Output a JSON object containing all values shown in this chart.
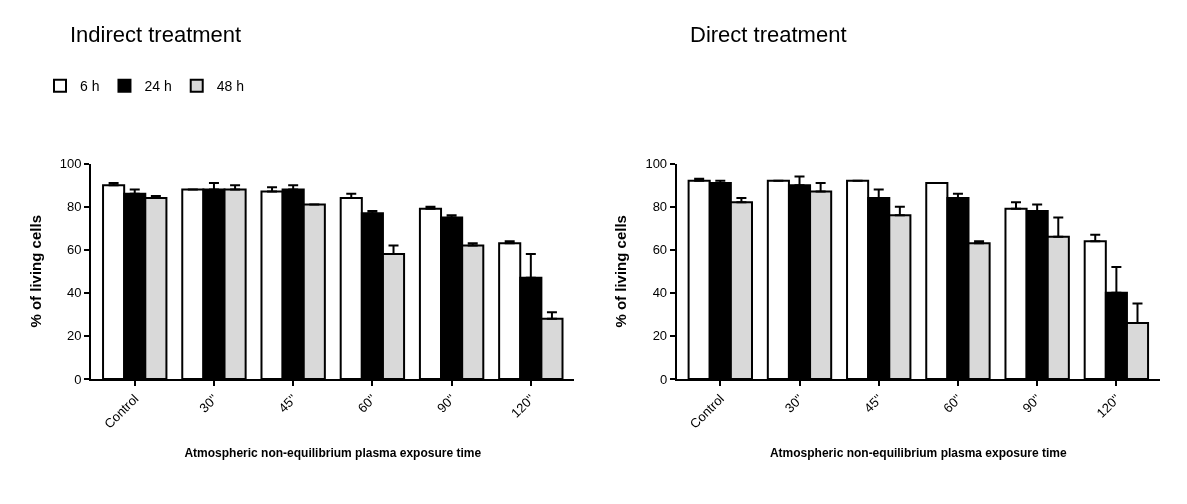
{
  "chart_data": [
    {
      "type": "bar",
      "title": "Indirect treatment",
      "ylabel": "% of living cells",
      "xlabel": "Atmospheric non-equilibrium plasma exposure time",
      "categories": [
        "Control",
        "30''",
        "45''",
        "60''",
        "90''",
        "120''"
      ],
      "series": [
        {
          "name": "6 h",
          "color": "#ffffff",
          "values": [
            90,
            88,
            87,
            84,
            79,
            63
          ],
          "errors": [
            1,
            null,
            2,
            2,
            1,
            1
          ]
        },
        {
          "name": "24 h",
          "color": "#000000",
          "values": [
            86,
            88,
            88,
            77,
            75,
            47
          ],
          "errors": [
            2,
            3,
            2,
            1,
            1,
            11
          ]
        },
        {
          "name": "48 h",
          "color": "#d9d9d9",
          "values": [
            84,
            88,
            81,
            58,
            62,
            28
          ],
          "errors": [
            1,
            2,
            null,
            4,
            1,
            3
          ]
        }
      ],
      "ylim": [
        0,
        100
      ],
      "yticks": [
        0,
        20,
        40,
        60,
        80,
        100
      ],
      "legend": "top left"
    },
    {
      "type": "bar",
      "title": "Direct treatment",
      "ylabel": "% of living cells",
      "xlabel": "Atmospheric non-equilibrium plasma exposure time",
      "categories": [
        "Control",
        "30''",
        "45''",
        "60''",
        "90''",
        "120''"
      ],
      "series": [
        {
          "color": "#ffffff",
          "values": [
            92,
            92,
            92,
            91,
            79,
            64
          ],
          "errors": [
            1,
            null,
            null,
            null,
            3,
            3
          ]
        },
        {
          "color": "#000000",
          "values": [
            91,
            90,
            84,
            84,
            78,
            40
          ],
          "errors": [
            1,
            4,
            4,
            2,
            3,
            12
          ]
        },
        {
          "color": "#d9d9d9",
          "values": [
            82,
            87,
            76,
            63,
            66,
            26
          ],
          "errors": [
            2,
            4,
            4,
            1,
            9,
            9
          ]
        }
      ],
      "ylim": [
        0,
        100
      ],
      "yticks": [
        0,
        20,
        40,
        60,
        80,
        100
      ],
      "legend": false
    }
  ]
}
